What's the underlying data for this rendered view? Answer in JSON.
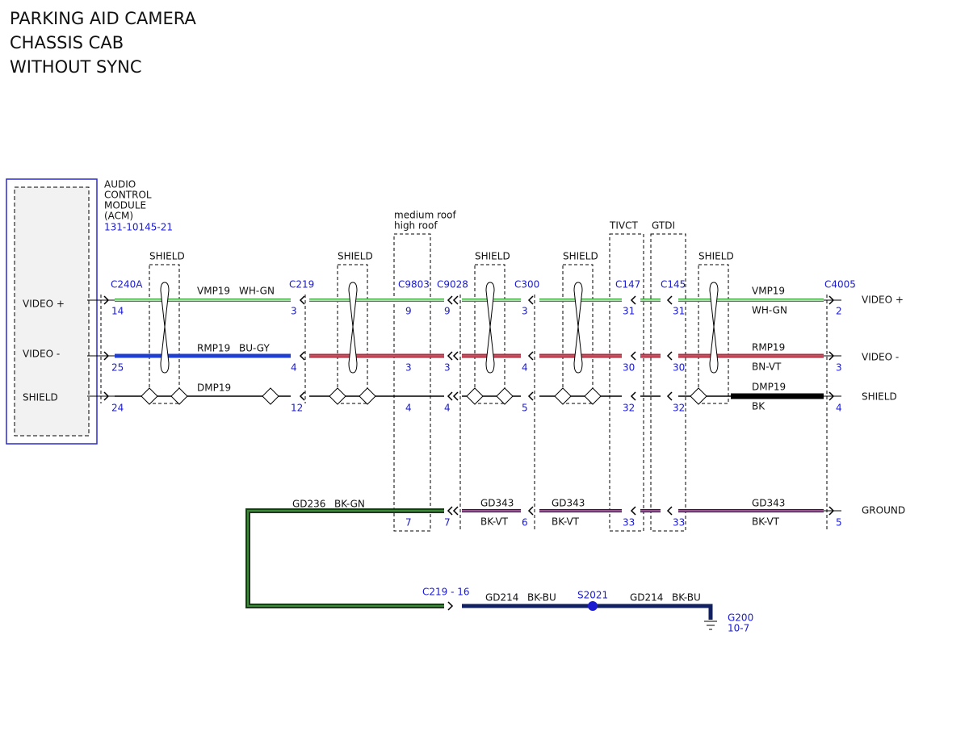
{
  "header": {
    "lines": [
      "PARKING AID CAMERA",
      "CHASSIS CAB",
      "WITHOUT SYNC"
    ]
  },
  "module": {
    "name_lines": [
      "AUDIO",
      "CONTROL",
      "MODULE",
      "(ACM)"
    ],
    "ref": "131-10145-21",
    "pins": [
      "VIDEO +",
      "VIDEO -",
      "SHIELD"
    ]
  },
  "connectors": [
    {
      "name": "C240A",
      "pins": [
        "14",
        "25",
        "24"
      ]
    },
    {
      "name": "C219",
      "pins": [
        "3",
        "4",
        "12"
      ]
    },
    {
      "name": "C9803",
      "pins": [
        "9",
        "3",
        "4",
        "7"
      ]
    },
    {
      "name": "C9028",
      "pins": [
        "9",
        "3",
        "4",
        "7"
      ]
    },
    {
      "name": "C300",
      "pins": [
        "3",
        "4",
        "5",
        "6"
      ]
    },
    {
      "name": "C147",
      "pins": [
        "31",
        "30",
        "32",
        "33"
      ]
    },
    {
      "name": "C145",
      "pins": [
        "31",
        "30",
        "32",
        "33"
      ]
    },
    {
      "name": "C4005",
      "pins": [
        "2",
        "3",
        "4",
        "5"
      ]
    }
  ],
  "shields": [
    "SHIELD",
    "SHIELD",
    "SHIELD",
    "SHIELD",
    "SHIELD"
  ],
  "options": [
    "medium roof",
    "high roof",
    "TIVCT",
    "GTDI"
  ],
  "wires": {
    "left": [
      "VMP19",
      "WH-GN",
      "RMP19",
      "BU-GY",
      "DMP19"
    ],
    "right": [
      "VMP19",
      "WH-GN",
      "RMP19",
      "BN-VT",
      "DMP19",
      "BK"
    ],
    "ground": [
      "GD236",
      "BK-GN",
      "GD343",
      "BK-VT",
      "GD343",
      "BK-VT",
      "GD343",
      "BK-VT"
    ],
    "bottom": [
      "C219 - 16",
      "GD214",
      "BK-BU",
      "S2021",
      "GD214",
      "BK-BU",
      "G200",
      "10-7"
    ]
  },
  "signals": [
    "VIDEO +",
    "VIDEO -",
    "SHIELD",
    "GROUND"
  ]
}
